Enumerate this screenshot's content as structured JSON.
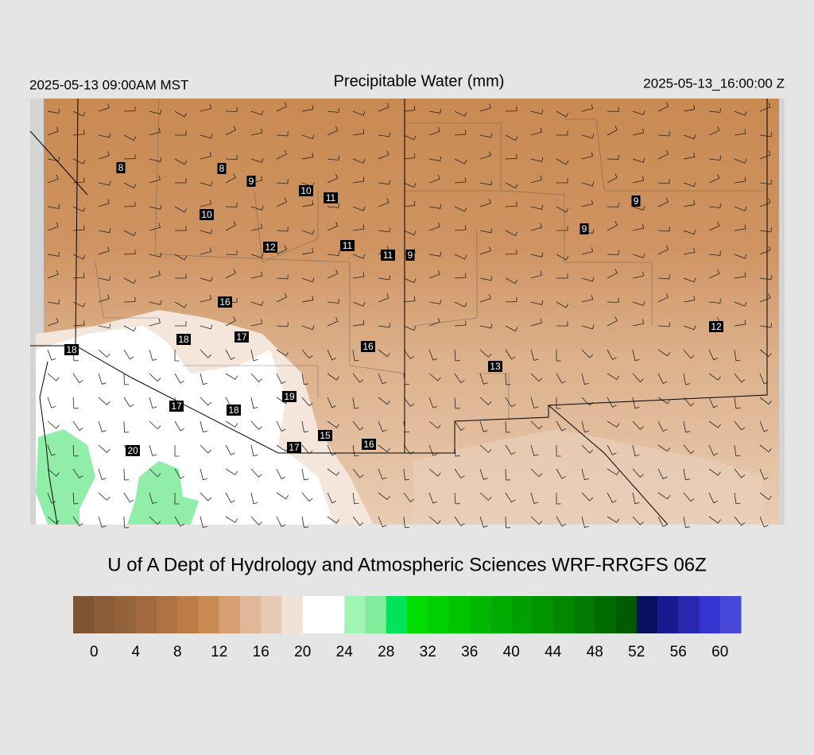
{
  "header": {
    "local_time": "2025-05-13 09:00AM MST",
    "title": "Precipitable Water (mm)",
    "valid_time": "2025-05-13_16:00:00 Z"
  },
  "map": {
    "station_labels": [
      8,
      8,
      9,
      10,
      11,
      10,
      12,
      11,
      11,
      9,
      9,
      9,
      16,
      18,
      17,
      16,
      18,
      13,
      12,
      19,
      17,
      18,
      15,
      16,
      17,
      20
    ]
  },
  "credit": "U of A Dept of Hydrology and Atmospheric Sciences WRF-RRGFS 06Z",
  "colorbar": {
    "lim": [
      -2,
      62
    ],
    "ticks": [
      0,
      4,
      8,
      12,
      16,
      20,
      24,
      28,
      32,
      36,
      40,
      44,
      48,
      52,
      56,
      60
    ],
    "colors": [
      "#7d5535",
      "#8a5d38",
      "#95633b",
      "#a06a3e",
      "#ad7343",
      "#bd7c47",
      "#c98a52",
      "#d49f72",
      "#e0b898",
      "#e8cbb4",
      "#f0e2d6",
      "#ffffff",
      "#ffffff",
      "#a0f5b4",
      "#80ec9c",
      "#00e35a",
      "#00dc00",
      "#00d000",
      "#00c400",
      "#00b800",
      "#00ac00",
      "#00a000",
      "#009400",
      "#008800",
      "#007c00",
      "#006c00",
      "#005a00",
      "#0a1060",
      "#1a1a90",
      "#2828b0",
      "#3434d0",
      "#4848d8"
    ]
  }
}
